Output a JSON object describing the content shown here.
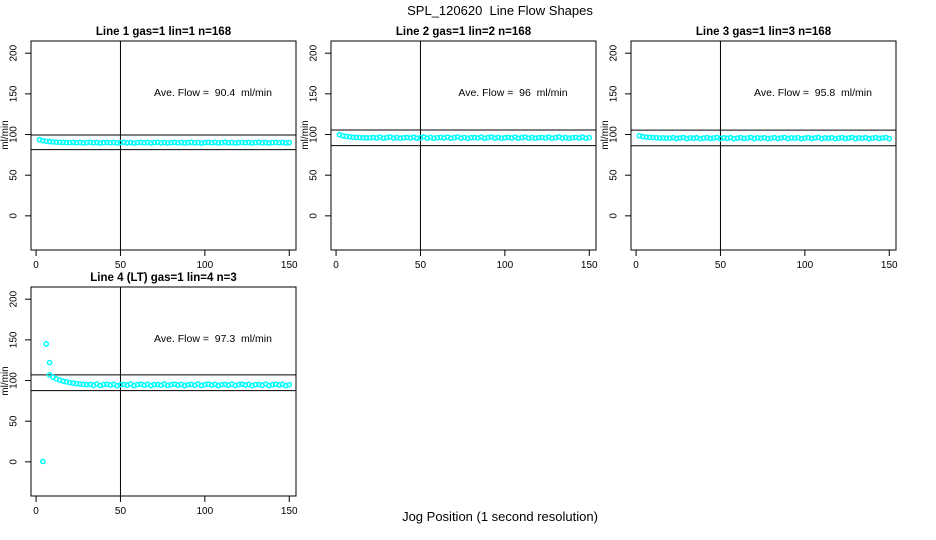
{
  "page": {
    "main_title": "SPL_120620  Line Flow Shapes",
    "x_axis_label": "Jog Position (1 second resolution)",
    "background": "#ffffff"
  },
  "colors": {
    "points": "#00ffff",
    "axis": "#000000",
    "text": "#000000"
  },
  "chart_data": [
    {
      "type": "scatter",
      "name": "Line 1",
      "title": "Line 1 gas=1 lin=1 n=168",
      "annotation": "Ave. Flow =  90.4  ml/min",
      "ave_flow": 90.4,
      "n": 168,
      "ylabel": "ml/min",
      "x_ticks": [
        0,
        50,
        100,
        150
      ],
      "y_ticks": [
        0,
        50,
        100,
        150,
        200
      ],
      "xlim": [
        -3,
        154
      ],
      "ylim": [
        -42,
        215
      ],
      "vline": 50,
      "hlines": [
        99.4,
        81.4
      ],
      "x0": 2,
      "dx": 2,
      "y": [
        93.7,
        92.5,
        91.8,
        91.3,
        90.9,
        90.6,
        90.4,
        90.3,
        90.2,
        90.1,
        90.4,
        89.8,
        90.3,
        89.6,
        90.1,
        90.5,
        89.7,
        90.2,
        89.5,
        90.0,
        90.4,
        89.8,
        90.3,
        89.6,
        90.1,
        90.5,
        89.7,
        90.2,
        89.5,
        90.0,
        90.4,
        89.8,
        90.3,
        89.6,
        90.1,
        90.5,
        89.7,
        90.2,
        89.5,
        90.0,
        90.4,
        89.8,
        90.3,
        89.6,
        90.1,
        90.5,
        89.7,
        90.2,
        89.5,
        90.0,
        90.4,
        89.8,
        90.3,
        89.6,
        90.1,
        90.5,
        89.7,
        90.2,
        89.5,
        90.0,
        90.4,
        89.8,
        90.3,
        89.6,
        90.1,
        90.5,
        89.7,
        90.2,
        89.5,
        90.0,
        90.4,
        89.8,
        90.3,
        89.6,
        90.1
      ],
      "outliers": []
    },
    {
      "type": "scatter",
      "name": "Line 2",
      "title": "Line 2 gas=1 lin=2 n=168",
      "annotation": "Ave. Flow =  96  ml/min",
      "ave_flow": 96,
      "n": 168,
      "ylabel": "ml/min",
      "x_ticks": [
        0,
        50,
        100,
        150
      ],
      "y_ticks": [
        0,
        50,
        100,
        150,
        200
      ],
      "xlim": [
        -3,
        154
      ],
      "ylim": [
        -42,
        215
      ],
      "vline": 50,
      "hlines": [
        105.6,
        86.4
      ],
      "x0": 2,
      "dx": 2,
      "y": [
        99.8,
        98.5,
        97.7,
        97.1,
        96.7,
        96.4,
        96.2,
        96.0,
        95.9,
        95.9,
        96.4,
        95.7,
        96.8,
        95.5,
        96.2,
        97.0,
        95.6,
        96.3,
        95.4,
        96.1,
        96.4,
        95.7,
        96.8,
        95.5,
        96.2,
        97.0,
        95.6,
        96.3,
        95.4,
        96.1,
        96.4,
        95.7,
        96.8,
        95.5,
        96.2,
        97.0,
        95.6,
        96.3,
        95.4,
        96.1,
        96.4,
        95.7,
        96.8,
        95.5,
        96.2,
        97.0,
        95.6,
        96.3,
        95.4,
        96.1,
        96.4,
        95.7,
        96.8,
        95.5,
        96.2,
        97.0,
        95.6,
        96.3,
        95.4,
        96.1,
        96.4,
        95.7,
        96.8,
        95.5,
        96.2,
        97.0,
        95.6,
        96.3,
        95.4,
        96.1,
        96.4,
        95.7,
        96.8,
        95.5,
        96.2
      ],
      "outliers": []
    },
    {
      "type": "scatter",
      "name": "Line 3",
      "title": "Line 3 gas=1 lin=3 n=168",
      "annotation": "Ave. Flow =  95.8  ml/min",
      "ave_flow": 95.8,
      "n": 168,
      "ylabel": "ml/min",
      "x_ticks": [
        0,
        50,
        100,
        150
      ],
      "y_ticks": [
        0,
        50,
        100,
        150,
        200
      ],
      "xlim": [
        -3,
        154
      ],
      "ylim": [
        -42,
        215
      ],
      "vline": 50,
      "hlines": [
        105.4,
        86.2
      ],
      "x0": 2,
      "dx": 2,
      "y": [
        98.3,
        97.4,
        96.9,
        96.5,
        96.2,
        96.0,
        95.8,
        95.7,
        95.6,
        95.6,
        96.2,
        95.2,
        95.8,
        96.4,
        95.0,
        95.9,
        95.4,
        96.1,
        94.9,
        95.6,
        96.2,
        95.2,
        95.8,
        96.4,
        95.0,
        95.9,
        95.4,
        96.1,
        94.9,
        95.6,
        96.2,
        95.2,
        95.8,
        96.4,
        95.0,
        95.9,
        95.4,
        96.1,
        94.9,
        95.6,
        96.2,
        95.2,
        95.8,
        96.4,
        95.0,
        95.9,
        95.4,
        96.1,
        94.9,
        95.6,
        96.2,
        95.2,
        95.8,
        96.4,
        95.0,
        95.9,
        95.4,
        96.1,
        94.9,
        95.6,
        96.2,
        95.2,
        95.8,
        96.4,
        95.0,
        95.9,
        95.4,
        96.1,
        94.9,
        95.6,
        96.2,
        95.2,
        95.8,
        96.4,
        95.0
      ],
      "outliers": []
    },
    {
      "type": "scatter",
      "name": "Line 4 (LT)",
      "title": "Line 4 (LT) gas=1 lin=4 n=3",
      "annotation": "Ave. Flow =  97.3  ml/min",
      "ave_flow": 97.3,
      "n": 3,
      "ylabel": "ml/min",
      "x_ticks": [
        0,
        50,
        100,
        150
      ],
      "y_ticks": [
        0,
        50,
        100,
        150,
        200
      ],
      "xlim": [
        -3,
        154
      ],
      "ylim": [
        -42,
        215
      ],
      "vline": 50,
      "hlines": [
        107.0,
        87.6
      ],
      "x0": 8,
      "dx": 2,
      "y": [
        107,
        104,
        102,
        100.5,
        99.3,
        98.3,
        97.5,
        96.8,
        96.2,
        95.7,
        95.3,
        95.0,
        95.2,
        94.2,
        95.7,
        93.9,
        95.0,
        95.5,
        94.4,
        95.3,
        93.7,
        94.9,
        95.2,
        94.2,
        95.7,
        93.9,
        95.0,
        95.5,
        94.4,
        95.3,
        93.7,
        94.9,
        95.2,
        94.2,
        95.7,
        93.9,
        95.0,
        95.5,
        94.4,
        95.3,
        93.7,
        94.9,
        95.2,
        94.2,
        95.7,
        93.9,
        95.0,
        95.5,
        94.4,
        95.3,
        93.7,
        94.9,
        95.2,
        94.2,
        95.7,
        93.9,
        95.0,
        95.5,
        94.4,
        95.3,
        93.7,
        94.9,
        95.2,
        94.2,
        95.7,
        93.9,
        95.0,
        95.5,
        94.4,
        95.3,
        93.7,
        94.9
      ],
      "outliers": [
        [
          4,
          0.5
        ],
        [
          6,
          145
        ],
        [
          8,
          122
        ]
      ]
    }
  ]
}
